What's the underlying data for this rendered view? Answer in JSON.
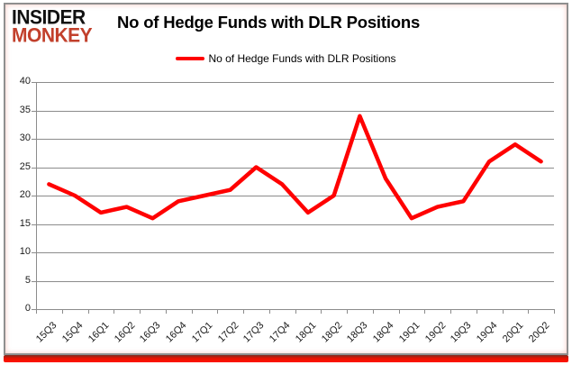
{
  "logo": {
    "line1": "INSIDER",
    "line2": "MONKEY"
  },
  "header": {
    "title": "No of Hedge Funds with DLR Positions"
  },
  "legend": {
    "label": "No of Hedge Funds with DLR Positions"
  },
  "colors": {
    "line": "#ff0000",
    "grid": "#8c8c8c",
    "logo_black": "#111111",
    "logo_red": "#c2402c",
    "bottom_bar": "#ff1400",
    "frame_border": "#8f8f8f"
  },
  "chart_data": {
    "type": "line",
    "title": "No of Hedge Funds with DLR Positions",
    "categories": [
      "15Q3",
      "15Q4",
      "16Q1",
      "16Q2",
      "16Q3",
      "16Q4",
      "17Q1",
      "17Q2",
      "17Q3",
      "17Q4",
      "18Q1",
      "18Q2",
      "18Q3",
      "18Q4",
      "19Q1",
      "19Q2",
      "19Q3",
      "19Q4",
      "20Q1",
      "20Q2"
    ],
    "series": [
      {
        "name": "No of Hedge Funds with DLR Positions",
        "values": [
          22,
          20,
          17,
          18,
          16,
          19,
          20,
          21,
          25,
          22,
          17,
          20,
          34,
          23,
          16,
          18,
          19,
          26,
          29,
          26
        ]
      }
    ],
    "xlabel": "",
    "ylabel": "",
    "ylim": [
      0,
      40
    ],
    "ytick_step": 5,
    "yticks": [
      40,
      35,
      30,
      25,
      20,
      15,
      10,
      5,
      0
    ],
    "grid": "horizontal",
    "legend_position": "top-center",
    "line_color": "#ff0000"
  }
}
